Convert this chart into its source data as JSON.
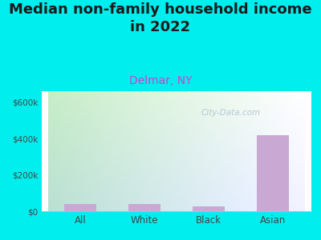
{
  "title": "Median non-family household income\nin 2022",
  "subtitle": "Delmar, NY",
  "categories": [
    "All",
    "White",
    "Black",
    "Asian"
  ],
  "values": [
    40000,
    40000,
    28000,
    420000
  ],
  "bar_color": "#c9a8d4",
  "title_fontsize": 13,
  "subtitle_fontsize": 10,
  "subtitle_color": "#cc44cc",
  "title_color": "#1a1a1a",
  "background_color": "#00eeee",
  "plot_bg_color_topleft": "#d4f0d4",
  "plot_bg_color_topright": "#e8f8f8",
  "plot_bg_color_bottom": "#d8f0d8",
  "ylim": [
    0,
    660000
  ],
  "yticks": [
    0,
    200000,
    400000,
    600000
  ],
  "ytick_labels": [
    "$0",
    "$200k",
    "$400k",
    "$600k"
  ],
  "watermark": "City-Data.com",
  "watermark_color": "#aabbcc",
  "tick_color": "#444444"
}
